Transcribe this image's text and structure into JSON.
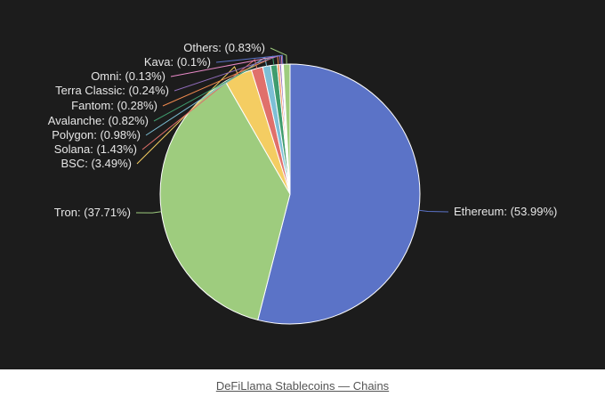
{
  "chart_data": {
    "type": "pie",
    "start_angle_deg": -90,
    "direction": "clockwise",
    "legend": "none",
    "slices": [
      {
        "name": "Ethereum",
        "value": 53.99,
        "label": "Ethereum: (53.99%)",
        "color": "#5b73c7"
      },
      {
        "name": "Tron",
        "value": 37.71,
        "label": "Tron: (37.71%)",
        "color": "#9ecc7e"
      },
      {
        "name": "BSC",
        "value": 3.49,
        "label": "BSC: (3.49%)",
        "color": "#f4cd62"
      },
      {
        "name": "Solana",
        "value": 1.43,
        "label": "Solana: (1.43%)",
        "color": "#e0706b"
      },
      {
        "name": "Polygon",
        "value": 0.98,
        "label": "Polygon: (0.98%)",
        "color": "#7dbfd6"
      },
      {
        "name": "Avalanche",
        "value": 0.82,
        "label": "Avalanche: (0.82%)",
        "color": "#3f9c6e"
      },
      {
        "name": "Fantom",
        "value": 0.28,
        "label": "Fantom: (0.28%)",
        "color": "#f08a4e"
      },
      {
        "name": "Terra Classic",
        "value": 0.24,
        "label": "Terra Classic: (0.24%)",
        "color": "#8f6bb8"
      },
      {
        "name": "Omni",
        "value": 0.13,
        "label": "Omni: (0.13%)",
        "color": "#e98ac8"
      },
      {
        "name": "Kava",
        "value": 0.1,
        "label": "Kava: (0.1%)",
        "color": "#5b73c7"
      },
      {
        "name": "Others",
        "value": 0.83,
        "label": "Others: (0.83%)",
        "color": "#9ecc7e"
      }
    ]
  },
  "caption": "DeFiLlama Stablecoins — Chains"
}
